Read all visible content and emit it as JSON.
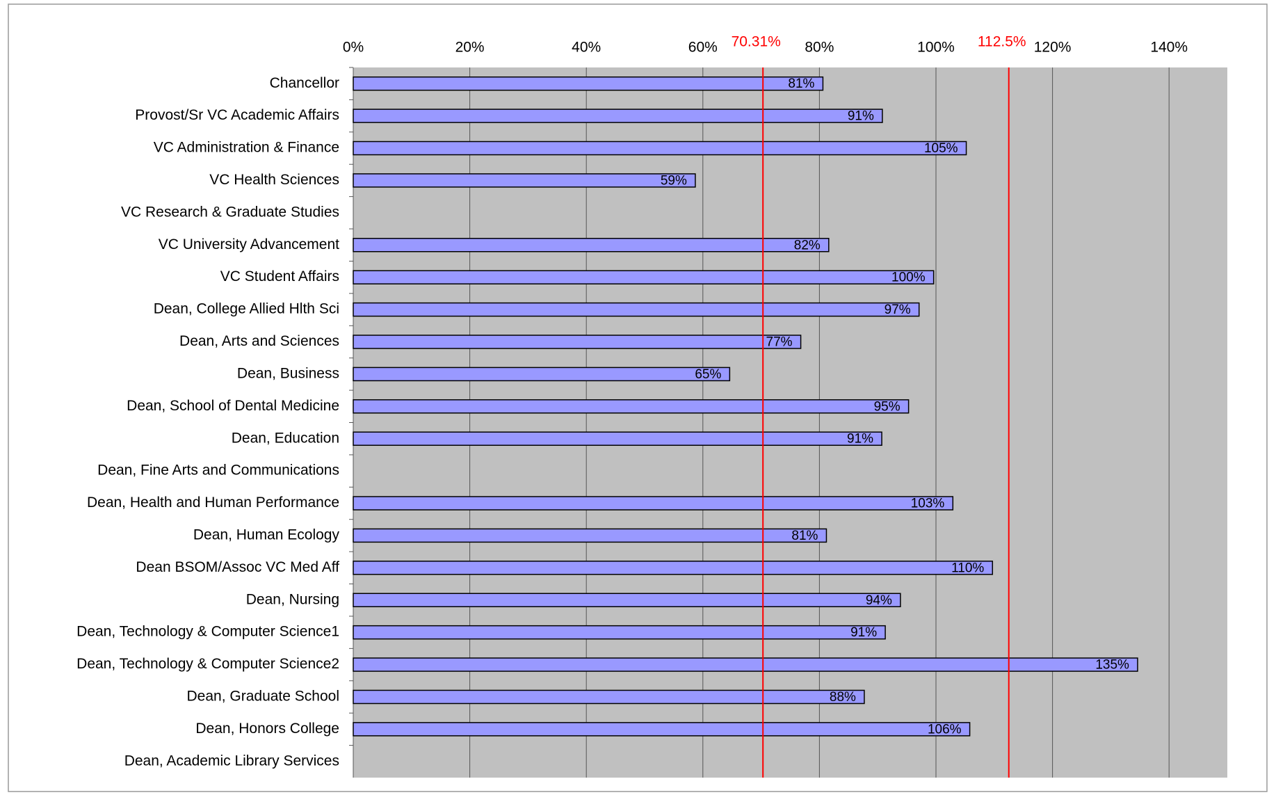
{
  "chart_data": {
    "type": "hbar",
    "categories": [
      "Chancellor",
      "Provost/Sr VC Academic Affairs",
      "VC Administration & Finance",
      "VC Health Sciences",
      "VC Research & Graduate Studies",
      "VC University Advancement",
      "VC Student Affairs",
      "Dean, College Allied Hlth Sci",
      "Dean, Arts and Sciences",
      "Dean, Business",
      "Dean, School of Dental Medicine",
      "Dean, Education",
      "Dean, Fine Arts and Communications",
      "Dean, Health and Human Performance",
      "Dean, Human Ecology",
      "Dean BSOM/Assoc VC Med Aff",
      "Dean, Nursing",
      "Dean, Technology & Computer Science1",
      "Dean, Technology & Computer Science2",
      "Dean, Graduate School",
      "Dean, Honors College",
      "Dean, Academic Library Services"
    ],
    "values": [
      80.6,
      90.8,
      105.2,
      58.7,
      null,
      81.6,
      99.6,
      97.1,
      76.8,
      64.6,
      95.3,
      90.7,
      null,
      102.9,
      81.2,
      109.7,
      93.9,
      91.3,
      134.6,
      87.7,
      105.8,
      null
    ],
    "value_labels": [
      "81%",
      "91%",
      "105%",
      "59%",
      null,
      "82%",
      "100%",
      "97%",
      "77%",
      "65%",
      "95%",
      "91%",
      null,
      "103%",
      "81%",
      "110%",
      "94%",
      "91%",
      "135%",
      "88%",
      "106%",
      null
    ],
    "color": "#9999ff",
    "xlim": [
      0,
      150
    ],
    "xticks": [
      {
        "value": 0,
        "label": "0%"
      },
      {
        "value": 20,
        "label": "20%"
      },
      {
        "value": 40,
        "label": "40%"
      },
      {
        "value": 60,
        "label": "60%"
      },
      {
        "value": 80,
        "label": "80%"
      },
      {
        "value": 100,
        "label": "100%"
      },
      {
        "value": 120,
        "label": "120%"
      },
      {
        "value": 140,
        "label": "140%"
      }
    ],
    "grid": true,
    "reference_lines": [
      {
        "value": 70.31,
        "label": "70.31%",
        "color": "#ff0000"
      },
      {
        "value": 112.5,
        "label": "112.5%",
        "color": "#ff0000"
      }
    ]
  }
}
